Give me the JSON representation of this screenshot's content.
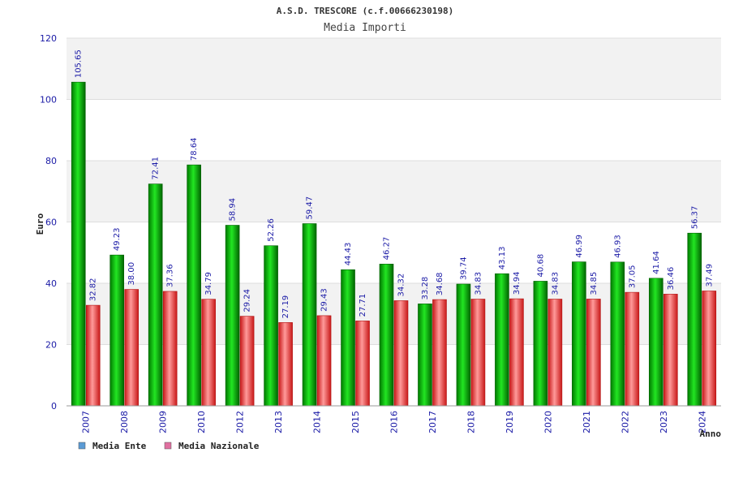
{
  "chart_data": {
    "type": "bar",
    "title": "A.S.D. TRESCORE (c.f.00666230198)",
    "subtitle": "Media Importi",
    "xlabel": "Anno",
    "ylabel": "Euro",
    "ylim": [
      0,
      120
    ],
    "yticks": [
      0,
      20,
      40,
      60,
      80,
      100,
      120
    ],
    "grid": true,
    "legend_position": "bottom-left",
    "categories": [
      "2007",
      "2008",
      "2009",
      "2010",
      "2012",
      "2013",
      "2014",
      "2015",
      "2016",
      "2017",
      "2018",
      "2019",
      "2020",
      "2021",
      "2022",
      "2023",
      "2024"
    ],
    "series": [
      {
        "name": "Media Ente",
        "color": "#00b000",
        "legend_color": "#5b9bd5",
        "values": [
          105.65,
          49.23,
          72.41,
          78.64,
          58.94,
          52.26,
          59.47,
          44.43,
          46.27,
          33.28,
          39.74,
          43.13,
          40.68,
          46.99,
          46.93,
          41.64,
          56.37
        ],
        "labels": [
          "105.65",
          "49.23",
          "72.41",
          "78.64",
          "58.94",
          "52.26",
          "59.47",
          "44.43",
          "46.27",
          "33.28",
          "39.74",
          "43.13",
          "40.68",
          "46.99",
          "46.93",
          "41.64",
          "56.37"
        ]
      },
      {
        "name": "Media Nazionale",
        "color": "#e02424",
        "legend_color": "#e070a0",
        "values": [
          32.82,
          38.0,
          37.36,
          34.79,
          29.24,
          27.19,
          29.43,
          27.71,
          34.32,
          34.68,
          34.83,
          34.94,
          34.83,
          34.85,
          37.05,
          36.46,
          37.49
        ],
        "labels": [
          "32.82",
          "38.00",
          "37.36",
          "34.79",
          "29.24",
          "27.19",
          "29.43",
          "27.71",
          "34.32",
          "34.68",
          "34.83",
          "34.94",
          "34.83",
          "34.85",
          "37.05",
          "36.46",
          "37.49"
        ]
      }
    ]
  }
}
